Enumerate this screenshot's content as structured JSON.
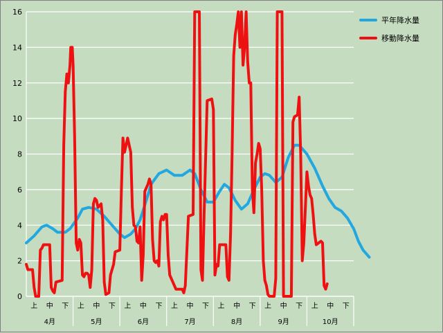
{
  "chart_data": {
    "type": "line",
    "title": "",
    "xlabel": "",
    "ylabel": "",
    "ylim": [
      0,
      16
    ],
    "yticks": [
      0,
      2,
      4,
      6,
      8,
      10,
      12,
      14,
      16
    ],
    "grid": true,
    "legend_position": "right",
    "months": [
      "4月",
      "5月",
      "6月",
      "7月",
      "8月",
      "9月",
      "10月"
    ],
    "periods": [
      "上",
      "中",
      "下"
    ],
    "x_range": [
      0,
      21
    ],
    "series": [
      {
        "name": "平年降水量",
        "color": "#22a7df",
        "points": [
          [
            0,
            3.0
          ],
          [
            0.5,
            3.4
          ],
          [
            1,
            3.9
          ],
          [
            1.3,
            4.0
          ],
          [
            1.7,
            3.8
          ],
          [
            2,
            3.6
          ],
          [
            2.5,
            3.6
          ],
          [
            2.8,
            3.8
          ],
          [
            3.3,
            4.4
          ],
          [
            3.6,
            4.9
          ],
          [
            4,
            5.0
          ],
          [
            4.5,
            4.9
          ],
          [
            5,
            4.5
          ],
          [
            5.5,
            4.0
          ],
          [
            6,
            3.5
          ],
          [
            6.3,
            3.3
          ],
          [
            6.7,
            3.5
          ],
          [
            7,
            3.8
          ],
          [
            7.3,
            4.3
          ],
          [
            7.7,
            5.4
          ],
          [
            8,
            6.3
          ],
          [
            8.5,
            6.9
          ],
          [
            9,
            7.1
          ],
          [
            9.5,
            6.8
          ],
          [
            10,
            6.8
          ],
          [
            10.5,
            7.1
          ],
          [
            10.8,
            6.9
          ],
          [
            11.2,
            6.0
          ],
          [
            11.6,
            5.3
          ],
          [
            12,
            5.3
          ],
          [
            12.4,
            5.9
          ],
          [
            12.7,
            6.3
          ],
          [
            13,
            6.1
          ],
          [
            13.4,
            5.4
          ],
          [
            13.8,
            4.9
          ],
          [
            14.2,
            5.2
          ],
          [
            14.6,
            6.0
          ],
          [
            15,
            6.7
          ],
          [
            15.3,
            6.9
          ],
          [
            15.6,
            6.8
          ],
          [
            16,
            6.4
          ],
          [
            16.4,
            6.7
          ],
          [
            16.8,
            7.8
          ],
          [
            17.2,
            8.5
          ],
          [
            17.5,
            8.5
          ],
          [
            18,
            8.0
          ],
          [
            18.5,
            7.2
          ],
          [
            19,
            6.2
          ],
          [
            19.4,
            5.5
          ],
          [
            19.8,
            5.0
          ],
          [
            20.2,
            4.8
          ],
          [
            20.6,
            4.4
          ],
          [
            21,
            3.8
          ],
          [
            21.3,
            3.1
          ],
          [
            21.6,
            2.6
          ],
          [
            21.9,
            2.3
          ],
          [
            22,
            2.2
          ]
        ]
      },
      {
        "name": "移動降水量",
        "color": "#ee1111",
        "points": [
          [
            0,
            1.8
          ],
          [
            0.1,
            1.5
          ],
          [
            0.4,
            1.5
          ],
          [
            0.5,
            0.5
          ],
          [
            0.6,
            0
          ],
          [
            0.8,
            0
          ],
          [
            0.9,
            2.6
          ],
          [
            1.0,
            2.7
          ],
          [
            1.1,
            2.9
          ],
          [
            1.5,
            2.9
          ],
          [
            1.6,
            0.5
          ],
          [
            1.7,
            0.3
          ],
          [
            1.8,
            0.2
          ],
          [
            1.9,
            0.8
          ],
          [
            2.3,
            0.9
          ],
          [
            2.4,
            8.5
          ],
          [
            2.5,
            11.5
          ],
          [
            2.6,
            12.5
          ],
          [
            2.7,
            12.0
          ],
          [
            2.8,
            13.0
          ],
          [
            2.85,
            14.0
          ],
          [
            2.95,
            14.0
          ],
          [
            3.0,
            13.0
          ],
          [
            3.1,
            9.0
          ],
          [
            3.2,
            3.0
          ],
          [
            3.3,
            2.6
          ],
          [
            3.4,
            3.2
          ],
          [
            3.5,
            3.0
          ],
          [
            3.6,
            1.2
          ],
          [
            3.7,
            1.1
          ],
          [
            3.8,
            1.3
          ],
          [
            3.9,
            1.3
          ],
          [
            4.0,
            1.2
          ],
          [
            4.1,
            0.5
          ],
          [
            4.2,
            1.5
          ],
          [
            4.3,
            5.2
          ],
          [
            4.4,
            5.5
          ],
          [
            4.5,
            5.4
          ],
          [
            4.6,
            5.0
          ],
          [
            4.8,
            5.2
          ],
          [
            4.9,
            4.3
          ],
          [
            5.0,
            0.8
          ],
          [
            5.1,
            0.1
          ],
          [
            5.3,
            0.2
          ],
          [
            5.4,
            1.2
          ],
          [
            5.6,
            1.8
          ],
          [
            5.7,
            2.5
          ],
          [
            6.0,
            2.6
          ],
          [
            6.1,
            6.0
          ],
          [
            6.2,
            8.9
          ],
          [
            6.3,
            8.1
          ],
          [
            6.5,
            8.9
          ],
          [
            6.7,
            8.1
          ],
          [
            6.8,
            5.0
          ],
          [
            6.9,
            4.0
          ],
          [
            7.0,
            3.9
          ],
          [
            7.1,
            3.1
          ],
          [
            7.2,
            3.0
          ],
          [
            7.3,
            3.9
          ],
          [
            7.4,
            0.9
          ],
          [
            7.5,
            2.3
          ],
          [
            7.6,
            5.9
          ],
          [
            7.8,
            6.3
          ],
          [
            7.9,
            6.6
          ],
          [
            8.0,
            6.3
          ],
          [
            8.1,
            3.2
          ],
          [
            8.2,
            2.0
          ],
          [
            8.3,
            1.9
          ],
          [
            8.4,
            2.0
          ],
          [
            8.5,
            1.7
          ],
          [
            8.6,
            4.2
          ],
          [
            8.7,
            4.5
          ],
          [
            8.8,
            4.3
          ],
          [
            8.9,
            4.6
          ],
          [
            9.0,
            4.6
          ],
          [
            9.1,
            2.3
          ],
          [
            9.2,
            1.2
          ],
          [
            9.4,
            0.8
          ],
          [
            9.6,
            0.4
          ],
          [
            10.0,
            0.4
          ],
          [
            10.1,
            0.2
          ],
          [
            10.2,
            0.6
          ],
          [
            10.4,
            4.5
          ],
          [
            10.7,
            4.6
          ],
          [
            10.8,
            16
          ],
          [
            11.0,
            16
          ],
          [
            11.1,
            16
          ],
          [
            11.2,
            1.5
          ],
          [
            11.3,
            0.9
          ],
          [
            11.4,
            4.5
          ],
          [
            11.6,
            11.0
          ],
          [
            11.9,
            11.1
          ],
          [
            12.0,
            10.5
          ],
          [
            12.1,
            1.2
          ],
          [
            12.2,
            1.8
          ],
          [
            12.3,
            1.7
          ],
          [
            12.4,
            2.9
          ],
          [
            12.8,
            2.9
          ],
          [
            12.9,
            1.1
          ],
          [
            13.0,
            0.9
          ],
          [
            13.1,
            3.5
          ],
          [
            13.2,
            8.0
          ],
          [
            13.3,
            13.5
          ],
          [
            13.4,
            14.7
          ],
          [
            13.5,
            15.3
          ],
          [
            13.6,
            16
          ],
          [
            13.7,
            14.0
          ],
          [
            13.8,
            16
          ],
          [
            13.9,
            13.0
          ],
          [
            14.0,
            14.0
          ],
          [
            14.1,
            16
          ],
          [
            14.2,
            13.2
          ],
          [
            14.3,
            12.0
          ],
          [
            14.4,
            12.0
          ],
          [
            14.5,
            6.0
          ],
          [
            14.6,
            4.7
          ],
          [
            14.7,
            7.5
          ],
          [
            14.8,
            8.0
          ],
          [
            14.9,
            8.6
          ],
          [
            15.0,
            8.3
          ],
          [
            15.1,
            6.0
          ],
          [
            15.2,
            2.0
          ],
          [
            15.3,
            0.9
          ],
          [
            15.4,
            0.6
          ],
          [
            15.5,
            0.1
          ],
          [
            15.6,
            0
          ],
          [
            15.9,
            0
          ],
          [
            16.0,
            1.0
          ],
          [
            16.1,
            16
          ],
          [
            16.3,
            16
          ],
          [
            16.4,
            16
          ],
          [
            16.5,
            0
          ],
          [
            16.6,
            0
          ],
          [
            17.0,
            0
          ],
          [
            17.1,
            9.8
          ],
          [
            17.2,
            10.1
          ],
          [
            17.4,
            10.2
          ],
          [
            17.5,
            11.2
          ],
          [
            17.6,
            8.0
          ],
          [
            17.7,
            2.0
          ],
          [
            17.8,
            3.0
          ],
          [
            17.9,
            5.0
          ],
          [
            18.0,
            7.0
          ],
          [
            18.1,
            6.2
          ],
          [
            18.2,
            5.7
          ],
          [
            18.3,
            5.5
          ],
          [
            18.4,
            4.6
          ],
          [
            18.5,
            3.5
          ],
          [
            18.6,
            2.9
          ],
          [
            18.9,
            3.1
          ],
          [
            19.0,
            3.0
          ],
          [
            19.1,
            0.6
          ],
          [
            19.2,
            0.4
          ],
          [
            19.3,
            0.7
          ]
        ]
      }
    ]
  }
}
